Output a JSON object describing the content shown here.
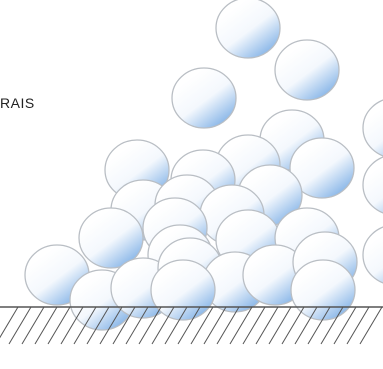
{
  "label": {
    "text": "RAIS"
  },
  "colors": {
    "particle_outline": "#b9bec4",
    "particle_fill_light": "#ffffff",
    "particle_fill_dark": "#7fb0e6",
    "ground_line": "#555555"
  },
  "icons": {
    "particle": "particle-icon",
    "ground": "ground-hatch-icon"
  }
}
